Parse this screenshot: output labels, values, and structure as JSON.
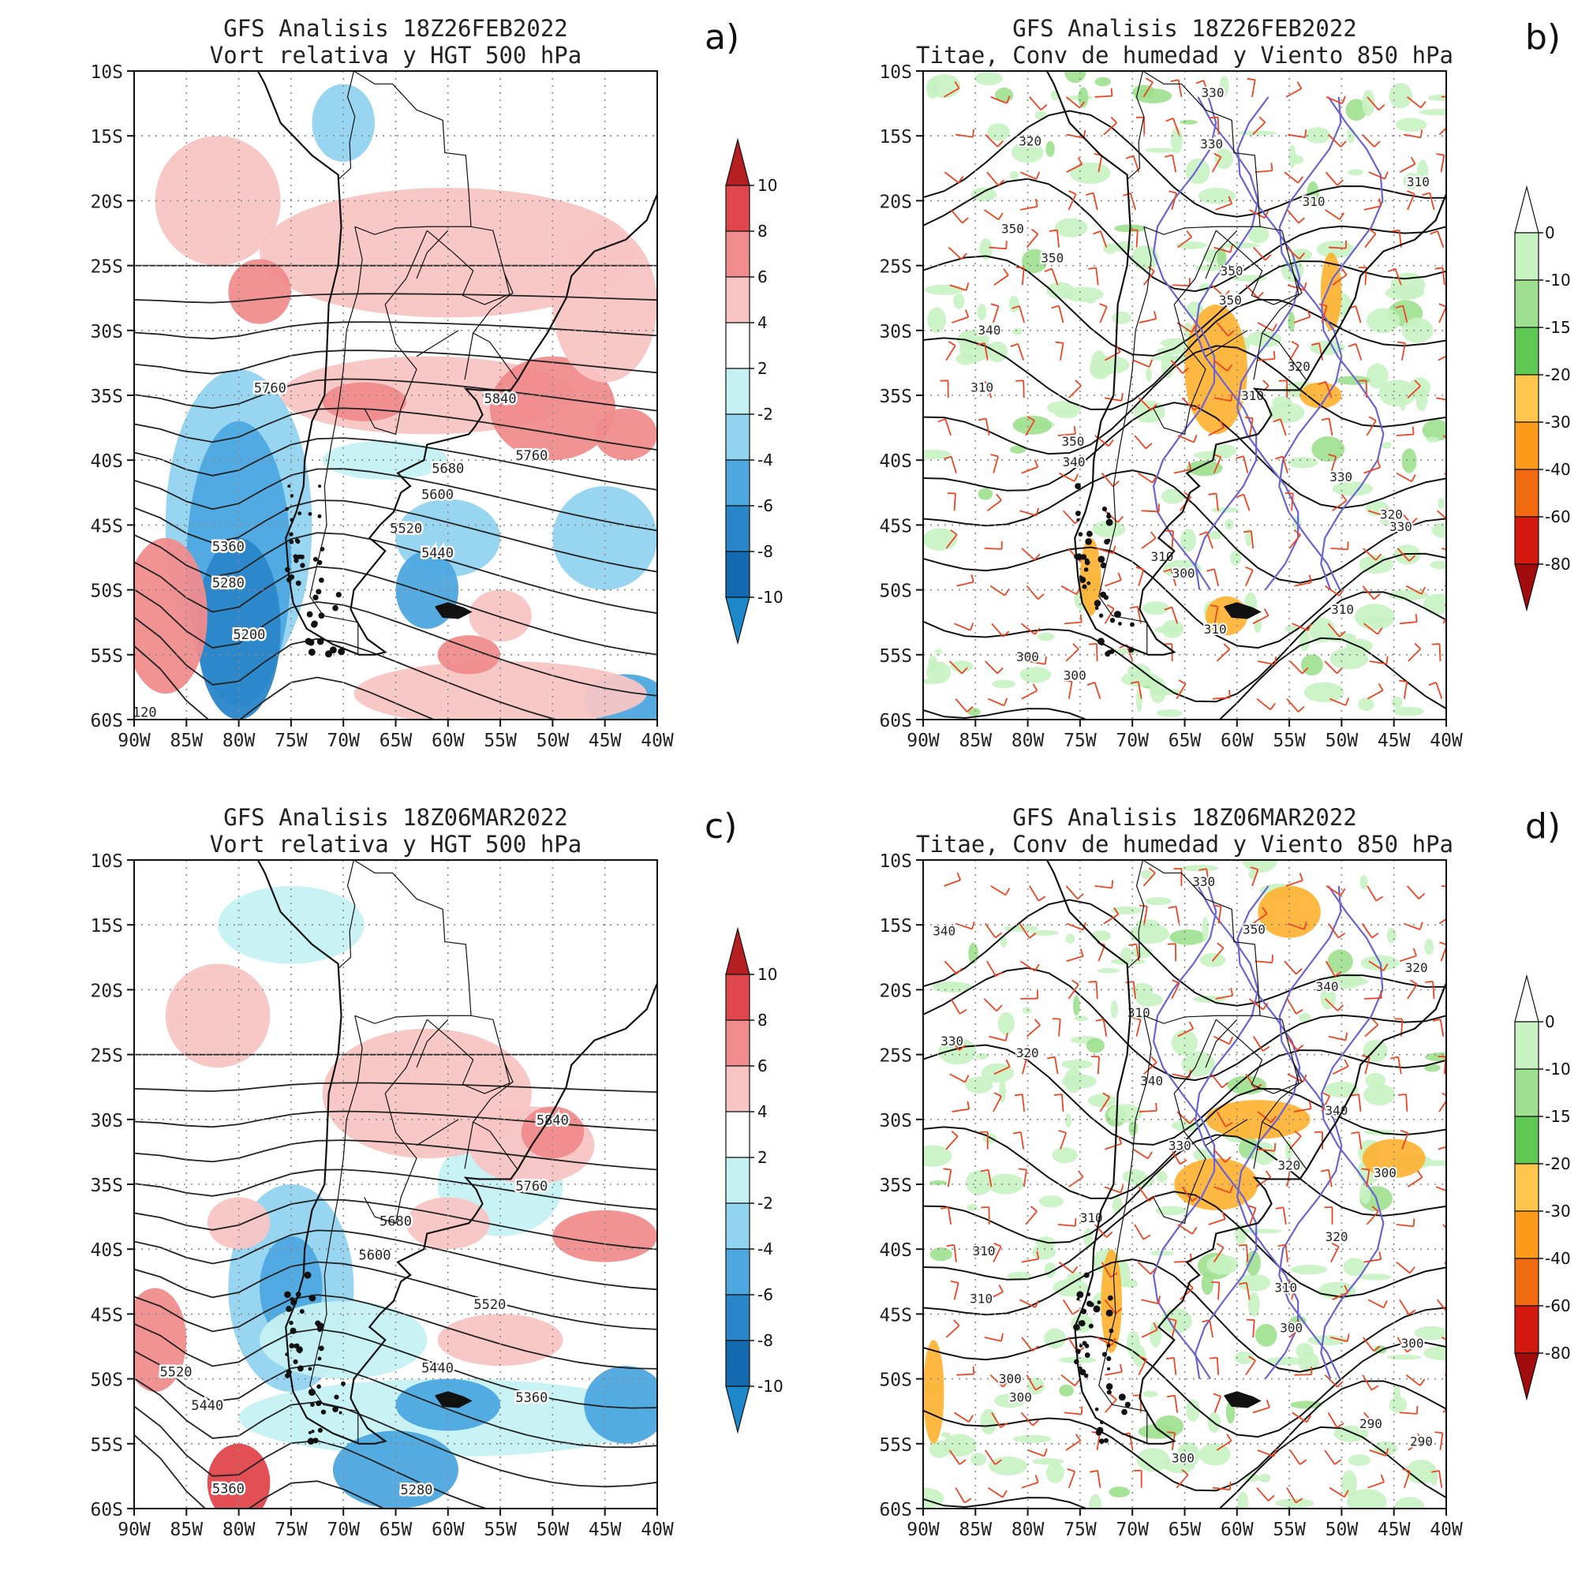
{
  "figure": {
    "panels": [
      {
        "id": "a",
        "letter": "a)",
        "title1": "GFS Analisis 18Z26FEB2022",
        "title2": "Vort relativa y HGT 500 hPa",
        "kind": "vort",
        "contour_labels": [
          "5760",
          "5840",
          "5760",
          "5680",
          "5600",
          "5520",
          "5440",
          "5360",
          "5280",
          "5200",
          "120"
        ]
      },
      {
        "id": "b",
        "letter": "b)",
        "title1": "GFS Analisis 18Z26FEB2022",
        "title2": "Titae, Conv de humedad y Viento 850 hPa",
        "kind": "conv",
        "contour_labels": [
          "330",
          "320",
          "330",
          "310",
          "310",
          "350",
          "350",
          "350",
          "350",
          "340",
          "320",
          "310",
          "310",
          "350",
          "340",
          "330",
          "320",
          "330",
          "310",
          "300",
          "310",
          "310",
          "300",
          "300"
        ]
      },
      {
        "id": "c",
        "letter": "c)",
        "title1": "GFS Analisis 18Z06MAR2022",
        "title2": "Vort relativa y HGT 500 hPa",
        "kind": "vort",
        "contour_labels": [
          "5840",
          "5760",
          "5680",
          "5600",
          "5520",
          "5520",
          "5440",
          "5440",
          "5360",
          "5360",
          "5280"
        ]
      },
      {
        "id": "d",
        "letter": "d)",
        "title1": "GFS Analisis 18Z06MAR2022",
        "title2": "Titae, Conv de humedad y Viento 850 hPa",
        "kind": "conv",
        "contour_labels": [
          "330",
          "350",
          "340",
          "320",
          "340",
          "310",
          "330",
          "320",
          "340",
          "340",
          "330",
          "320",
          "300",
          "310",
          "320",
          "310",
          "310",
          "310",
          "300",
          "300",
          "300",
          "300",
          "290",
          "290",
          "300"
        ]
      }
    ],
    "lat_ticks": [
      "10S",
      "15S",
      "20S",
      "25S",
      "30S",
      "35S",
      "40S",
      "45S",
      "50S",
      "55S",
      "60S"
    ],
    "lon_ticks": [
      "90W",
      "85W",
      "80W",
      "75W",
      "70W",
      "65W",
      "60W",
      "55W",
      "50W",
      "45W",
      "40W"
    ],
    "vort_colorbar": {
      "labels": [
        "10",
        "8",
        "6",
        "4",
        "2",
        "-2",
        "-4",
        "-6",
        "-8",
        "-10"
      ],
      "colors": [
        "#b51f21",
        "#e0474c",
        "#f08c8d",
        "#f8c5c4",
        "#ffffff",
        "#c6f1f3",
        "#92d3f0",
        "#4da8df",
        "#2a86c9",
        "#1469b0",
        "#0d5aa0",
        "#b51f21"
      ]
    },
    "conv_colorbar": {
      "labels": [
        "0",
        "-10",
        "-15",
        "-20",
        "-30",
        "-40",
        "-60",
        "-80"
      ],
      "colors": [
        "#ffffff",
        "#c8f2c2",
        "#9ee08f",
        "#5ec853",
        "#ffc64d",
        "#ff9a1a",
        "#f26a0f",
        "#d3180f",
        "#a00c0c"
      ]
    },
    "colors": {
      "coast": "#111111",
      "height": "#222222",
      "theta_hot": "#6a63d2",
      "wind": "#ee4422",
      "grid": "#888888"
    }
  }
}
